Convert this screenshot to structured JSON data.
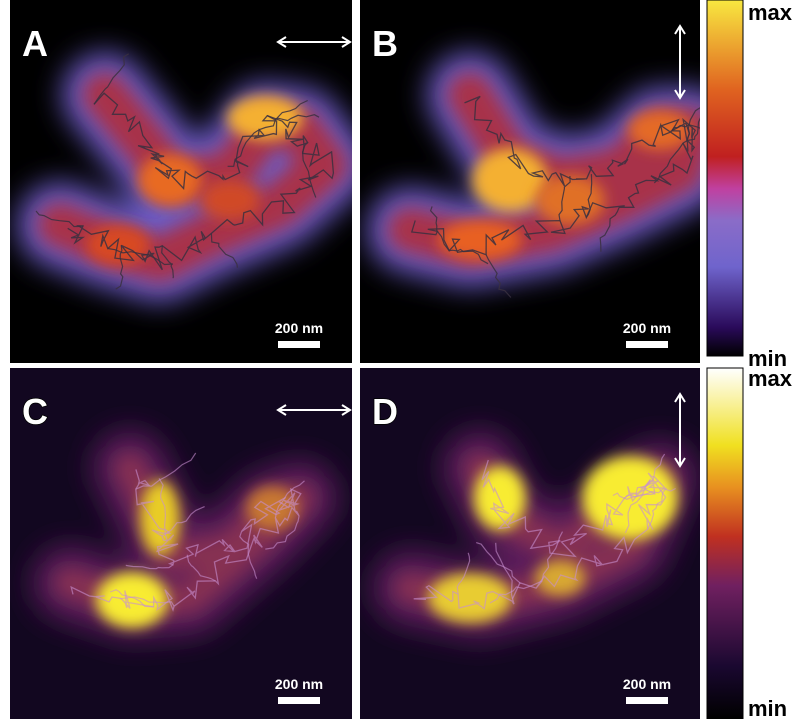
{
  "panels": [
    {
      "label": "A",
      "scale_bar": "200 nm"
    },
    {
      "label": "B",
      "scale_bar": "200 nm"
    },
    {
      "label": "C",
      "scale_bar": "200 nm"
    },
    {
      "label": "D",
      "scale_bar": "200 nm"
    }
  ],
  "colorbars": [
    {
      "max": "max",
      "min": "min"
    },
    {
      "max": "max",
      "min": "min"
    }
  ]
}
